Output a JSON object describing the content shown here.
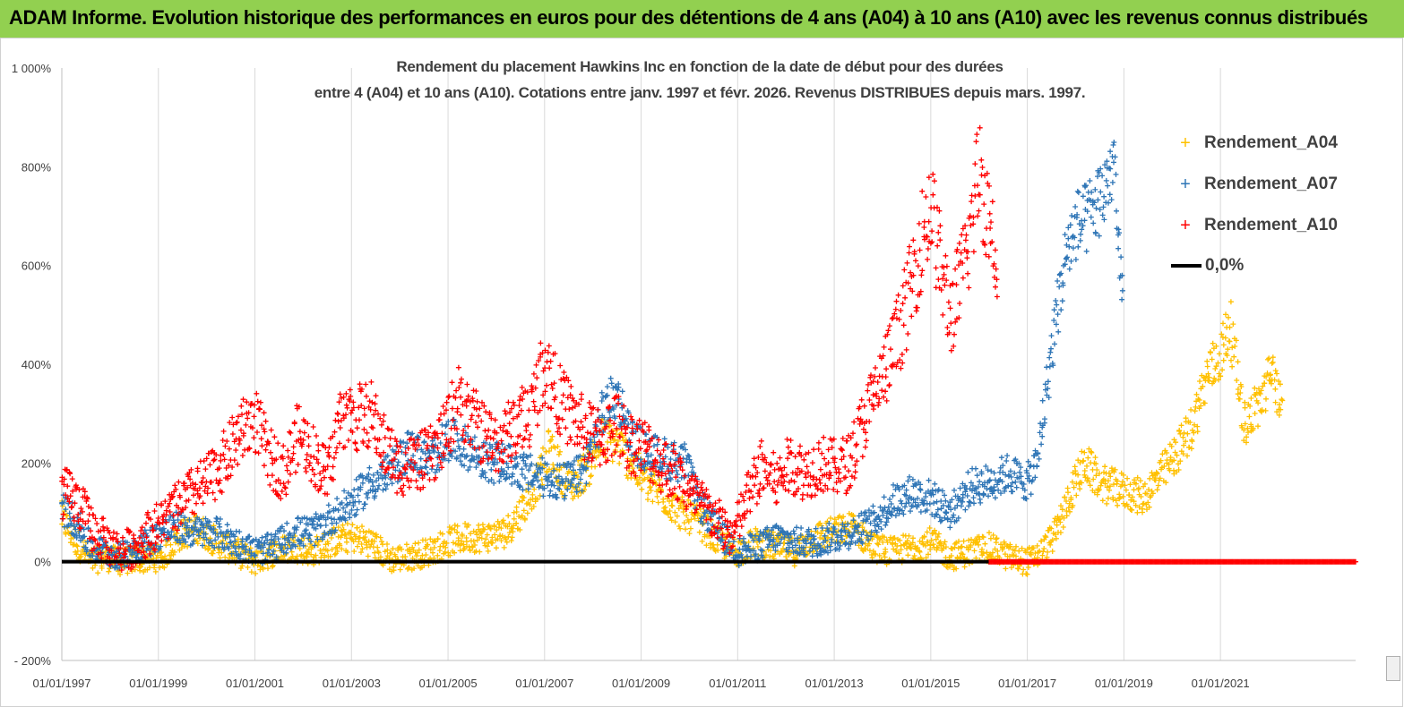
{
  "banner": {
    "title": "ADAM Informe. Evolution historique des performances en euros pour des détentions de 4 ans (A04) à 10 ans (A10) avec les revenus connus distribués",
    "color": "#92d050"
  },
  "chart_data": {
    "type": "scatter",
    "title_lines": [
      "Rendement du placement Hawkins Inc en fonction de la date de début pour des durées",
      "entre 4 (A04) et 10 ans (A10).  Cotations entre janv. 1997 et févr. 2026. Revenus  DISTRIBUES depuis mars. 1997."
    ],
    "xlabel": "",
    "ylabel": "",
    "x_unit": "year",
    "xlim": [
      1997.0,
      2023.8
    ],
    "ylim": [
      -200,
      1000
    ],
    "y_ticks": [
      -200,
      0,
      200,
      400,
      600,
      800,
      1000
    ],
    "y_tick_labels": [
      "- 200%",
      "0%",
      "200%",
      "400%",
      "600%",
      "800%",
      "1 000%"
    ],
    "x_ticks": [
      1997,
      1999,
      2001,
      2003,
      2005,
      2007,
      2009,
      2011,
      2013,
      2015,
      2017,
      2019,
      2021
    ],
    "x_tick_labels": [
      "01/01/1997",
      "01/01/1999",
      "01/01/2001",
      "01/01/2003",
      "01/01/2005",
      "01/01/2007",
      "01/01/2009",
      "01/01/2011",
      "01/01/2013",
      "01/01/2015",
      "01/01/2017",
      "01/01/2019",
      "01/01/2021"
    ],
    "grid": "vertical",
    "legend_position": "top-right",
    "series": [
      {
        "name": "Rendement_A04",
        "color": "#ffc000",
        "marker": "+",
        "x": [
          1997.0,
          1997.3,
          1997.6,
          1997.9,
          1998.2,
          1998.5,
          1998.8,
          1999.1,
          1999.4,
          1999.8,
          2000.2,
          2000.6,
          2001.0,
          2001.4,
          2001.8,
          2002.2,
          2002.6,
          2003.0,
          2003.4,
          2003.8,
          2004.2,
          2004.6,
          2005.0,
          2005.4,
          2005.8,
          2006.2,
          2006.5,
          2006.9,
          2007.1,
          2007.5,
          2007.9,
          2008.2,
          2008.5,
          2008.8,
          2009.1,
          2009.5,
          2009.8,
          2010.2,
          2010.6,
          2011.0,
          2011.4,
          2011.8,
          2012.2,
          2012.6,
          2013.0,
          2013.4,
          2013.8,
          2014.2,
          2014.6,
          2015.0,
          2015.4,
          2015.8,
          2016.2,
          2016.6,
          2017.0,
          2017.3,
          2017.6,
          2017.9,
          2018.2,
          2018.5,
          2018.8,
          2019.1,
          2019.4,
          2019.8,
          2020.1,
          2020.4,
          2020.7,
          2021.0,
          2021.2,
          2021.5,
          2021.8,
          2022.1,
          2022.3
        ],
        "y": [
          90,
          40,
          0,
          10,
          0,
          5,
          5,
          10,
          50,
          70,
          40,
          20,
          0,
          20,
          30,
          20,
          40,
          50,
          40,
          5,
          10,
          20,
          40,
          50,
          50,
          60,
          100,
          170,
          230,
          150,
          190,
          250,
          240,
          200,
          160,
          130,
          100,
          80,
          40,
          20,
          40,
          30,
          20,
          50,
          60,
          70,
          30,
          20,
          30,
          40,
          10,
          20,
          30,
          10,
          0,
          20,
          60,
          140,
          200,
          160,
          150,
          140,
          130,
          180,
          220,
          270,
          370,
          420,
          480,
          280,
          320,
          390,
          280
        ]
      },
      {
        "name": "Rendement_A07",
        "color": "#2e75b6",
        "marker": "+",
        "x": [
          1997.0,
          1997.3,
          1997.6,
          1997.9,
          1998.2,
          1998.5,
          1998.8,
          1999.1,
          1999.4,
          1999.8,
          2000.2,
          2000.6,
          2001.0,
          2001.4,
          2001.8,
          2002.2,
          2002.6,
          2003.0,
          2003.4,
          2003.8,
          2004.2,
          2004.6,
          2005.0,
          2005.4,
          2005.8,
          2006.2,
          2006.6,
          2007.0,
          2007.4,
          2007.8,
          2008.2,
          2008.5,
          2008.8,
          2009.1,
          2009.5,
          2009.9,
          2010.2,
          2010.6,
          2011.0,
          2011.4,
          2011.8,
          2012.2,
          2012.6,
          2013.0,
          2013.4,
          2013.8,
          2014.2,
          2014.6,
          2015.0,
          2015.4,
          2015.8,
          2016.2,
          2016.6,
          2017.0,
          2017.2,
          2017.4,
          2017.6,
          2017.8,
          2018.0,
          2018.2,
          2018.4,
          2018.6,
          2018.8,
          2018.9,
          2019.0
        ],
        "y": [
          110,
          80,
          30,
          20,
          10,
          30,
          40,
          60,
          70,
          60,
          60,
          40,
          20,
          30,
          60,
          60,
          90,
          120,
          160,
          180,
          230,
          200,
          250,
          230,
          200,
          200,
          180,
          170,
          160,
          180,
          300,
          340,
          250,
          220,
          210,
          200,
          120,
          60,
          20,
          30,
          50,
          40,
          40,
          50,
          60,
          80,
          120,
          140,
          130,
          100,
          150,
          160,
          180,
          160,
          200,
          350,
          500,
          620,
          680,
          690,
          720,
          750,
          820,
          600,
          520
        ]
      },
      {
        "name": "Rendement_A10",
        "color": "#ff0000",
        "marker": "+",
        "x": [
          1997.0,
          1997.2,
          1997.4,
          1997.6,
          1997.9,
          1998.2,
          1998.5,
          1998.8,
          1999.2,
          1999.6,
          2000.0,
          2000.4,
          2000.7,
          2001.0,
          2001.3,
          2001.6,
          2001.9,
          2002.2,
          2002.5,
          2002.8,
          2003.1,
          2003.4,
          2003.7,
          2004.0,
          2004.3,
          2004.6,
          2004.9,
          2005.2,
          2005.5,
          2005.8,
          2006.1,
          2006.4,
          2006.7,
          2007.0,
          2007.3,
          2007.6,
          2007.9,
          2008.2,
          2008.5,
          2008.8,
          2009.1,
          2009.4,
          2009.7,
          2010.0,
          2010.3,
          2010.6,
          2010.9,
          2011.2,
          2011.5,
          2011.8,
          2012.1,
          2012.4,
          2012.7,
          2013.0,
          2013.3,
          2013.6,
          2013.9,
          2014.2,
          2014.5,
          2014.8,
          2015.0,
          2015.2,
          2015.4,
          2015.6,
          2015.8,
          2016.0,
          2016.2,
          2016.4
        ],
        "y": [
          140,
          130,
          110,
          70,
          40,
          20,
          30,
          60,
          90,
          130,
          160,
          210,
          260,
          290,
          210,
          180,
          260,
          220,
          170,
          300,
          290,
          300,
          230,
          190,
          200,
          210,
          250,
          330,
          290,
          250,
          240,
          280,
          300,
          400,
          330,
          290,
          260,
          250,
          280,
          240,
          230,
          200,
          180,
          140,
          110,
          80,
          50,
          130,
          190,
          160,
          200,
          180,
          200,
          190,
          200,
          280,
          350,
          420,
          520,
          650,
          720,
          600,
          500,
          560,
          650,
          800,
          700,
          600
        ]
      },
      {
        "name": "Rendement_A10",
        "color": "#ff0000",
        "marker": "+",
        "legend": false,
        "x": [
          2016.2,
          2023.8
        ],
        "y": [
          0,
          0
        ],
        "note": "flat segment at 0% from 2016 onward"
      },
      {
        "name": "0,0%",
        "color": "#000000",
        "marker": "line",
        "x": [
          1997.0,
          2016.2
        ],
        "y": [
          0,
          0
        ]
      }
    ]
  },
  "legend": {
    "items": [
      {
        "label": "Rendement_A04",
        "color": "#ffc000",
        "kind": "marker"
      },
      {
        "label": "Rendement_A07",
        "color": "#2e75b6",
        "kind": "marker"
      },
      {
        "label": "Rendement_A10",
        "color": "#ff0000",
        "kind": "marker"
      },
      {
        "label": "0,0%",
        "color": "#000000",
        "kind": "line"
      }
    ]
  }
}
